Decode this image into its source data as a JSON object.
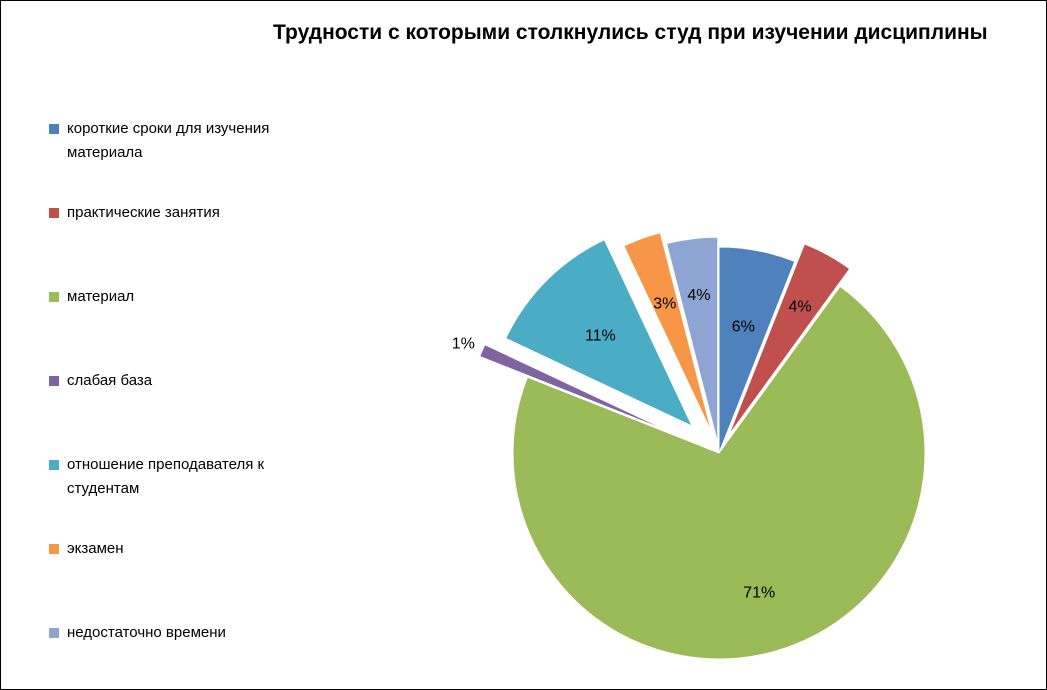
{
  "chart_data": {
    "type": "pie",
    "title": "Трудности с которыми столкнулись студ при изучении дисциплины",
    "categories": [
      "короткие сроки для изучения материала",
      "практические занятия",
      "материал",
      "слабая база",
      "отношение преподавателя к студентам",
      "экзамен",
      "недостаточно времени"
    ],
    "values": [
      6,
      4,
      71,
      1,
      11,
      3,
      4
    ],
    "labels": [
      "6%",
      "4%",
      "71%",
      "1%",
      "11%",
      "3%",
      "4%"
    ],
    "colors": [
      "#4F81BD",
      "#C0504D",
      "#9BBB59",
      "#8064A2",
      "#4BACC6",
      "#F79646",
      "#8EA5D3"
    ],
    "exploded": true,
    "legend_position": "left"
  }
}
